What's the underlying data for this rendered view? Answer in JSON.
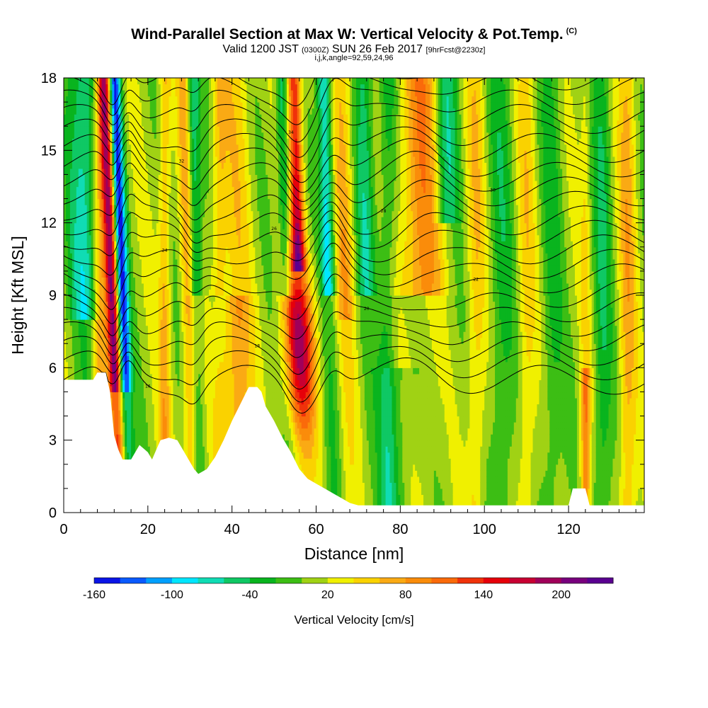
{
  "header": {
    "title": "Wind-Parallel Section at Max W: Vertical Velocity & Pot.Temp.",
    "copyright": "(C)",
    "valid_prefix": "Valid 1200 JST",
    "valid_z": "(0300Z)",
    "valid_date": "SUN 26 Feb 2017",
    "forecast": "[9hrFcst@2230z]",
    "indices": "i,j,k,angle=92,59,24,96"
  },
  "chart_data": {
    "type": "heatmap",
    "xlabel": "Distance [nm]",
    "ylabel": "Height [Kft MSL]",
    "xlim": [
      0,
      138
    ],
    "ylim": [
      0,
      18
    ],
    "x_ticks": [
      "0",
      "20",
      "40",
      "60",
      "80",
      "100",
      "120"
    ],
    "y_ticks": [
      "0",
      "3",
      "6",
      "9",
      "12",
      "15",
      "18"
    ],
    "colorbar": {
      "title": "Vertical Velocity [cm/s]",
      "labels": [
        "-160",
        "-100",
        "-40",
        "20",
        "80",
        "140",
        "200"
      ],
      "levels": [
        -160,
        -140,
        -120,
        -100,
        -80,
        -60,
        -40,
        -20,
        0,
        20,
        40,
        60,
        80,
        100,
        120,
        140,
        160,
        180,
        200,
        220
      ],
      "colors": [
        "#0a14e6",
        "#0a5aff",
        "#00a0ff",
        "#00e6ff",
        "#10dcb4",
        "#0fc864",
        "#09b41e",
        "#3cbe14",
        "#a0d214",
        "#f0f000",
        "#fad200",
        "#faaa14",
        "#fa8c0a",
        "#fa6a0a",
        "#f0320a",
        "#e6000a",
        "#c80032",
        "#a0005a",
        "#78007d",
        "#5a0090"
      ]
    },
    "terrain_kft": [
      [
        0,
        5.5
      ],
      [
        7,
        5.5
      ],
      [
        8,
        5.8
      ],
      [
        10,
        5.8
      ],
      [
        11,
        5.0
      ],
      [
        12,
        3.2
      ],
      [
        13,
        2.6
      ],
      [
        14,
        2.2
      ],
      [
        16,
        2.2
      ],
      [
        18,
        2.8
      ],
      [
        20,
        2.5
      ],
      [
        21,
        2.2
      ],
      [
        22,
        2.6
      ],
      [
        23,
        3.0
      ],
      [
        25,
        3.1
      ],
      [
        27,
        3.0
      ],
      [
        29,
        2.4
      ],
      [
        31,
        1.8
      ],
      [
        32,
        1.6
      ],
      [
        34,
        1.8
      ],
      [
        36,
        2.3
      ],
      [
        38,
        3.0
      ],
      [
        40,
        3.8
      ],
      [
        42,
        4.5
      ],
      [
        44,
        5.2
      ],
      [
        46,
        5.2
      ],
      [
        47,
        5.0
      ],
      [
        48,
        4.4
      ],
      [
        50,
        3.8
      ],
      [
        52,
        3.1
      ],
      [
        54,
        2.5
      ],
      [
        56,
        1.8
      ],
      [
        58,
        1.4
      ],
      [
        60,
        1.2
      ],
      [
        62,
        1.0
      ],
      [
        64,
        0.8
      ],
      [
        66,
        0.6
      ],
      [
        68,
        0.4
      ],
      [
        70,
        0.3
      ],
      [
        120,
        0.3
      ],
      [
        121,
        1.0
      ],
      [
        124,
        1.0
      ],
      [
        125,
        0.3
      ],
      [
        138,
        0.3
      ]
    ],
    "contour_labels": [
      "16",
      "18",
      "20",
      "22",
      "24",
      "26",
      "28",
      "30",
      "32",
      "34",
      "36",
      "38",
      "40"
    ]
  }
}
